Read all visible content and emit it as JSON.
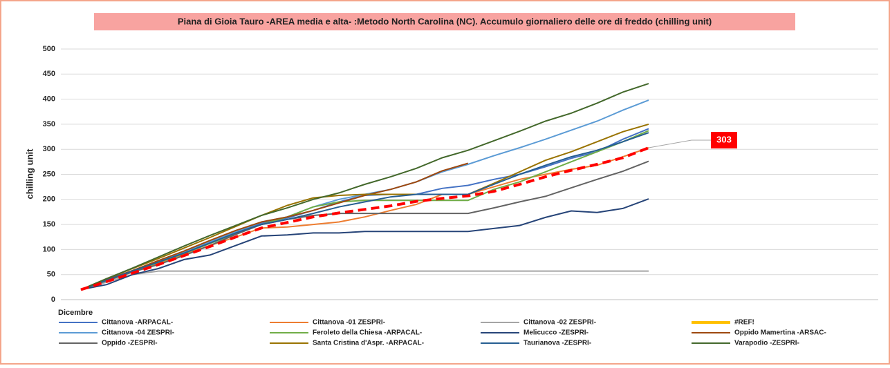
{
  "chart_data": {
    "type": "line",
    "title": "Piana di Gioia Tauro -AREA media e alta- :Metodo North Carolina (NC).  Accumulo giornaliero delle ore di freddo (chilling unit)",
    "xlabel": "Dicembre",
    "ylabel": "chilling unit",
    "categories": [
      null,
      null,
      null,
      null,
      null,
      null,
      null,
      null,
      null,
      null,
      null,
      null,
      null,
      null,
      null,
      null,
      null,
      null,
      null,
      null,
      null,
      null,
      null
    ],
    "ylim": [
      0,
      500
    ],
    "yticks": [
      0,
      50,
      100,
      150,
      200,
      250,
      300,
      350,
      400,
      450,
      500
    ],
    "grid": true,
    "series": [
      {
        "name": "Cittanova -ARPACAL-",
        "color": "#4472c4",
        "values": [
          20,
          40,
          58,
          76,
          95,
          115,
          135,
          152,
          163,
          178,
          195,
          208,
          210,
          210,
          222,
          228,
          240,
          250,
          265,
          282,
          295,
          320,
          341
        ]
      },
      {
        "name": "Cittanova -01 ZESPRI-",
        "color": "#ed7d31",
        "values": [
          20,
          37,
          55,
          72,
          90,
          108,
          125,
          143,
          145,
          150,
          155,
          165,
          178,
          190,
          210,
          210,
          225,
          240,
          250,
          260,
          268,
          285,
          303
        ]
      },
      {
        "name": "Cittanova -02 ZESPRI-",
        "color": "#a5a5a5",
        "values": [
          20,
          35,
          50,
          57,
          57,
          57,
          57,
          57,
          57,
          57,
          57,
          57,
          57,
          57,
          57,
          57,
          57,
          57,
          57,
          57,
          57,
          57,
          57
        ]
      },
      {
        "name": "#REF!",
        "color": "#ffc000",
        "values": [
          null,
          null,
          null,
          null,
          null,
          null,
          null,
          null,
          null,
          null,
          null,
          null,
          null,
          null,
          null,
          null,
          null,
          null,
          null,
          null,
          null,
          null,
          null
        ]
      },
      {
        "name": "Cittanova -04 ZESPRI-",
        "color": "#5b9bd5",
        "values": [
          20,
          40,
          58,
          76,
          95,
          115,
          135,
          155,
          165,
          185,
          200,
          210,
          220,
          235,
          255,
          270,
          287,
          303,
          320,
          338,
          356,
          378,
          398
        ]
      },
      {
        "name": "Feroleto della Chiesa -ARPACAL-",
        "color": "#70ad47",
        "values": [
          20,
          38,
          56,
          74,
          92,
          112,
          132,
          150,
          165,
          185,
          195,
          198,
          198,
          198,
          198,
          198,
          220,
          235,
          255,
          275,
          295,
          315,
          337
        ]
      },
      {
        "name": "Melicucco -ZESPRI-",
        "color": "#264478",
        "values": [
          20,
          30,
          50,
          62,
          80,
          89,
          108,
          127,
          129,
          133,
          133,
          136,
          136,
          136,
          136,
          136,
          142,
          148,
          164,
          177,
          174,
          182,
          201
        ]
      },
      {
        "name": "Oppido Mamertina -ARSAC-",
        "color": "#9e480e",
        "values": [
          20,
          40,
          58,
          78,
          97,
          118,
          138,
          155,
          165,
          178,
          193,
          208,
          220,
          235,
          257,
          272,
          null,
          null,
          null,
          null,
          null,
          null,
          null
        ]
      },
      {
        "name": "Oppido -ZESPRI-",
        "color": "#636363",
        "values": [
          20,
          38,
          55,
          70,
          88,
          108,
          130,
          150,
          160,
          168,
          172,
          172,
          172,
          172,
          172,
          172,
          183,
          195,
          206,
          223,
          240,
          256,
          276
        ]
      },
      {
        "name": "Santa Cristina d'Aspr. -ARPACAL-",
        "color": "#997300",
        "values": [
          20,
          42,
          62,
          82,
          103,
          124,
          146,
          168,
          188,
          203,
          208,
          210,
          210,
          210,
          210,
          210,
          232,
          255,
          278,
          295,
          315,
          335,
          350
        ]
      },
      {
        "name": "Taurianova -ZESPRI-",
        "color": "#255e91",
        "values": [
          20,
          39,
          57,
          75,
          93,
          113,
          133,
          150,
          160,
          172,
          185,
          195,
          205,
          210,
          210,
          210,
          230,
          250,
          268,
          285,
          298,
          315,
          333
        ]
      },
      {
        "name": "Varapodio -ZESPRI-",
        "color": "#43682b",
        "values": [
          20,
          42,
          63,
          85,
          107,
          128,
          148,
          168,
          183,
          200,
          213,
          230,
          245,
          262,
          283,
          298,
          317,
          336,
          356,
          372,
          392,
          414,
          431
        ]
      }
    ],
    "reference_line": {
      "color": "#ff0000",
      "values": [
        20,
        36,
        53,
        70,
        88,
        106,
        125,
        143,
        154,
        165,
        173,
        180,
        187,
        196,
        202,
        207,
        216,
        230,
        245,
        258,
        270,
        283,
        303
      ]
    }
  }
}
